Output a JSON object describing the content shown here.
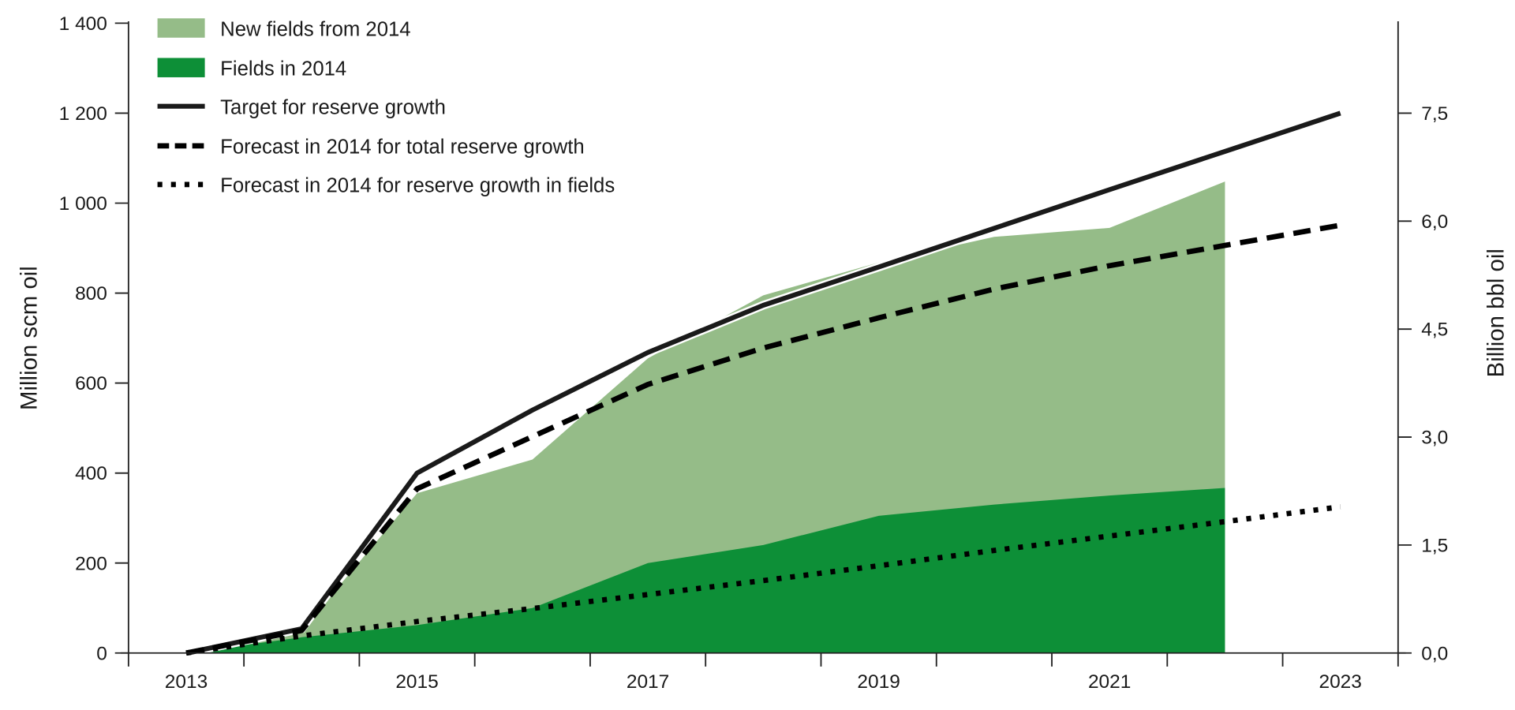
{
  "chart_data": {
    "type": "area",
    "title": "",
    "categories": [
      2013,
      2014,
      2015,
      2016,
      2017,
      2018,
      2019,
      2020,
      2021,
      2022,
      2023
    ],
    "x_tick_labels": [
      "2013",
      "2015",
      "2017",
      "2019",
      "2021",
      "2023"
    ],
    "ylabel": "Million scm oil",
    "ylim": [
      0,
      1400
    ],
    "y_ticks": [
      0,
      200,
      400,
      600,
      800,
      1000,
      1200,
      1400
    ],
    "y_tick_labels": [
      "0",
      "200",
      "400",
      "600",
      "800",
      "1 000",
      "1 200",
      "1 400"
    ],
    "y2label": "Billion bbl oil",
    "y2lim": [
      0,
      8.75
    ],
    "y2_ticks": [
      0,
      1.5,
      3.0,
      4.5,
      6.0,
      7.5
    ],
    "y2_tick_labels": [
      "0,0",
      "1,5",
      "3,0",
      "4,5",
      "6,0",
      "7,5"
    ],
    "grid": false,
    "legend_position": "top-left",
    "series": [
      {
        "name": "New fields from 2014",
        "kind": "stacked-area",
        "color": "#95bc88",
        "values": [
          0,
          15,
          293,
          330,
          455,
          555,
          563,
          595,
          595,
          681,
          null
        ],
        "total_top": [
          0,
          50,
          355,
          430,
          655,
          795,
          868,
          925,
          945,
          1048,
          null
        ]
      },
      {
        "name": "Fields in 2014",
        "kind": "area",
        "color": "#0d8f37",
        "values": [
          0,
          35,
          62,
          100,
          200,
          240,
          305,
          330,
          350,
          367,
          null
        ]
      },
      {
        "name": "Target for reserve growth",
        "kind": "line",
        "style": "solid",
        "color": "#1a1a1a",
        "values": [
          0,
          54,
          400,
          540,
          668,
          773,
          858,
          944,
          1030,
          1115,
          1200
        ]
      },
      {
        "name": "Forecast in 2014 for total reserve growth",
        "kind": "line",
        "style": "dashed",
        "color": "#000000",
        "values": [
          0,
          50,
          365,
          481,
          597,
          678,
          745,
          809,
          861,
          906,
          951
        ]
      },
      {
        "name": "Forecast in 2014 for reserve growth in fields",
        "kind": "line",
        "style": "dotted",
        "color": "#000000",
        "values": [
          0,
          38,
          70,
          99,
          130,
          161,
          194,
          228,
          260,
          292,
          325
        ]
      }
    ]
  }
}
